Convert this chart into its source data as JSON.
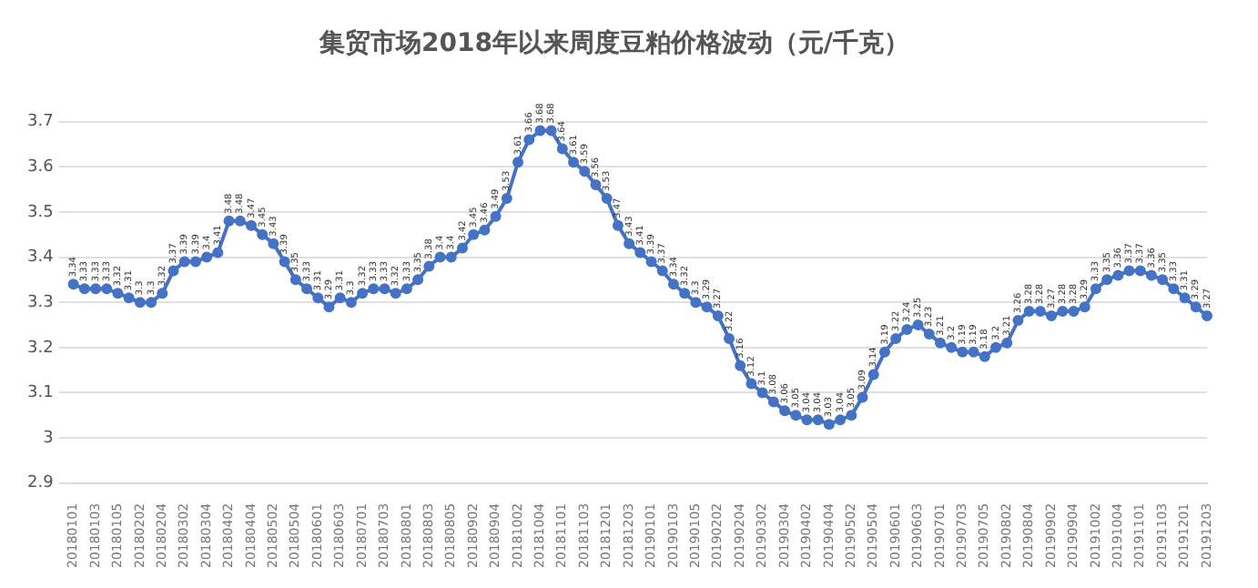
{
  "chart_data": {
    "type": "line",
    "title": "集贸市场2018年以来周度豆粕价格波动（元/千克）",
    "categories": [
      "20180101",
      null,
      "20180103",
      null,
      "20180105",
      null,
      "20180202",
      null,
      "20180204",
      null,
      "20180302",
      null,
      "20180304",
      null,
      "20180402",
      null,
      "20180404",
      null,
      "20180502",
      null,
      "20180504",
      null,
      "20180601",
      null,
      "20180603",
      null,
      "20180701",
      null,
      "20180703",
      null,
      "20180801",
      null,
      "20180803",
      null,
      "20180805",
      null,
      "20180902",
      null,
      "20180904",
      null,
      "20181002",
      null,
      "20181004",
      null,
      "20181101",
      null,
      "20181103",
      null,
      "20181201",
      null,
      "20181203",
      null,
      "20190101",
      null,
      "20190103",
      null,
      "20190105",
      null,
      "20190202",
      null,
      "20190204",
      null,
      "20190302",
      null,
      "20190304",
      null,
      "20190402",
      null,
      "20190404",
      null,
      "20190502",
      null,
      "20190504",
      null,
      "20190601",
      null,
      "20190603",
      null,
      "20190701",
      null,
      "20190703",
      null,
      "20190705",
      null,
      "20190802",
      null,
      "20190804",
      null,
      "20190902",
      null,
      "20190904",
      null,
      "20191002",
      null,
      "20191004",
      null,
      "20191101",
      null,
      "20191103",
      null,
      "20191201",
      null,
      "20191203"
    ],
    "series": [
      {
        "color": "#4472c4",
        "values": [
          3.34,
          3.33,
          3.33,
          3.33,
          3.32,
          3.31,
          3.3,
          3.3,
          3.32,
          3.37,
          3.39,
          3.39,
          3.4,
          3.41,
          3.48,
          3.48,
          3.47,
          3.45,
          3.43,
          3.39,
          3.35,
          3.33,
          3.31,
          3.29,
          3.31,
          3.3,
          3.32,
          3.33,
          3.33,
          3.32,
          3.33,
          3.35,
          3.38,
          3.4,
          3.4,
          3.42,
          3.45,
          3.46,
          3.49,
          3.53,
          3.61,
          3.66,
          3.68,
          3.68,
          3.64,
          3.61,
          3.59,
          3.56,
          3.53,
          3.47,
          3.43,
          3.41,
          3.39,
          3.37,
          3.34,
          3.32,
          3.3,
          3.29,
          3.27,
          3.22,
          3.16,
          3.12,
          3.1,
          3.08,
          3.06,
          3.05,
          3.04,
          3.04,
          3.03,
          3.04,
          3.05,
          3.09,
          3.14,
          3.19,
          3.22,
          3.24,
          3.25,
          3.23,
          3.21,
          3.2,
          3.19,
          3.19,
          3.18,
          3.2,
          3.21,
          3.26,
          3.28,
          3.28,
          3.27,
          3.28,
          3.28,
          3.29,
          3.33,
          3.35,
          3.36,
          3.37,
          3.37,
          3.36,
          3.35,
          3.33,
          3.31,
          3.29,
          3.27
        ]
      }
    ],
    "ylim": [
      2.9,
      3.7
    ],
    "yticks": [
      2.9,
      3,
      3.1,
      3.2,
      3.3,
      3.4,
      3.5,
      3.6,
      3.7
    ],
    "grid": "y",
    "legend": false,
    "marker": "circle",
    "line_style": "solid",
    "data_labels": true
  }
}
